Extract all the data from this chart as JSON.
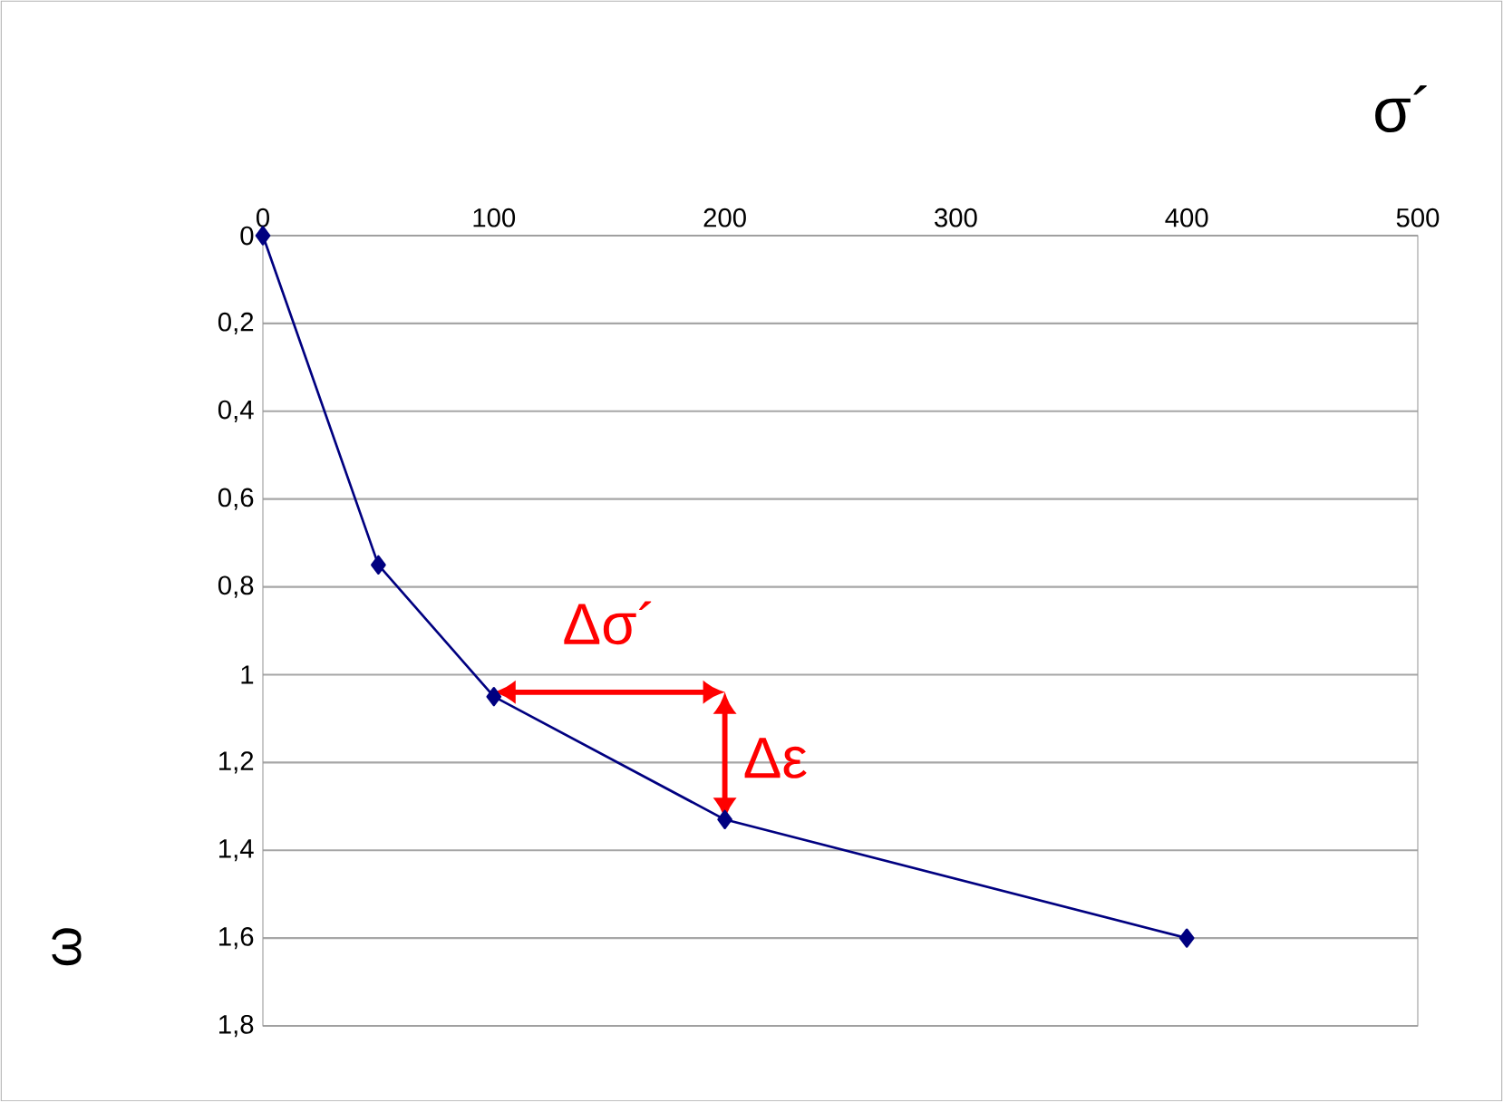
{
  "chart_data": {
    "type": "line",
    "xlabel": "σ´",
    "ylabel": "ω",
    "x": [
      0,
      50,
      100,
      200,
      400
    ],
    "series": [
      {
        "color": "#000080",
        "values": [
          0,
          0.75,
          1.05,
          1.33,
          1.6
        ]
      }
    ],
    "xlim": [
      0,
      500
    ],
    "xticks": [
      0,
      100,
      200,
      300,
      400,
      500
    ],
    "ylim": [
      1.8,
      0
    ],
    "yticks": [
      0,
      {
        "value": 0.2,
        "label": "0,2"
      },
      {
        "value": 0.4,
        "label": "0,4"
      },
      {
        "value": 0.6,
        "label": "0,6"
      },
      {
        "value": 0.8,
        "label": "0,8"
      },
      1,
      {
        "value": 1.2,
        "label": "1,2"
      },
      {
        "value": 1.4,
        "label": "1,4"
      },
      {
        "value": 1.6,
        "label": "1,6"
      },
      {
        "value": 1.8,
        "label": "1,8"
      }
    ],
    "grid": "y",
    "marker": "diamond",
    "line_style": "solid",
    "annotations": [
      "Δσ´",
      "Δε"
    ]
  }
}
